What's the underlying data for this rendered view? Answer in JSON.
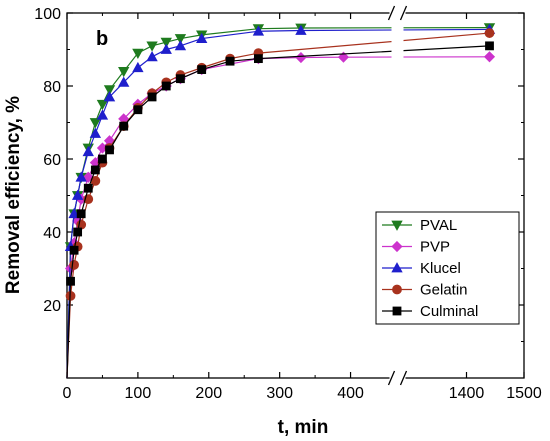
{
  "chart_data": {
    "type": "line",
    "panel_label": "b",
    "xlabel": "t, min",
    "ylabel": "Removal efficiency, %",
    "xlim": [
      0,
      1500
    ],
    "ylim": [
      0,
      100
    ],
    "x_axis_break": [
      450,
      1300
    ],
    "x_ticks": [
      "0",
      "100",
      "200",
      "300",
      "400",
      "1400",
      "1500"
    ],
    "x_tick_values": [
      0,
      100,
      200,
      300,
      400,
      1400,
      1500
    ],
    "y_ticks": [
      "20",
      "40",
      "60",
      "80",
      "100"
    ],
    "y_tick_values": [
      20,
      40,
      60,
      80,
      100
    ],
    "legend_position": "bottom-right",
    "series": [
      {
        "name": "PVAL",
        "color": "#1e7b1e",
        "marker": "triangle-down",
        "x": [
          0,
          5,
          10,
          15,
          20,
          30,
          40,
          50,
          60,
          80,
          100,
          120,
          140,
          160,
          190,
          270,
          330,
          1440
        ],
        "y": [
          0,
          36,
          45,
          50,
          55,
          63,
          70,
          75,
          79,
          84,
          89,
          91,
          92,
          93,
          94,
          95.7,
          95.9,
          96
        ]
      },
      {
        "name": "PVP",
        "color": "#cc33cc",
        "marker": "diamond",
        "x": [
          0,
          5,
          10,
          15,
          20,
          30,
          40,
          50,
          60,
          80,
          100,
          120,
          140,
          160,
          190,
          270,
          330,
          390,
          1440
        ],
        "y": [
          0,
          30,
          37,
          43,
          49,
          55,
          59,
          63,
          65,
          71,
          75,
          78,
          80,
          82,
          84.5,
          87.5,
          87.8,
          87.9,
          88
        ]
      },
      {
        "name": "Klucel",
        "color": "#1f1fcc",
        "marker": "triangle-up",
        "x": [
          0,
          5,
          10,
          15,
          20,
          30,
          40,
          50,
          60,
          80,
          100,
          120,
          140,
          160,
          190,
          270,
          330,
          1440
        ],
        "y": [
          0,
          36,
          45,
          50,
          55,
          62,
          67,
          72,
          77,
          81,
          85,
          88,
          90,
          91,
          93,
          95,
          95.2,
          95.5
        ]
      },
      {
        "name": "Gelatin",
        "color": "#a8321e",
        "marker": "circle",
        "x": [
          0,
          5,
          10,
          15,
          20,
          30,
          40,
          50,
          60,
          80,
          100,
          120,
          140,
          160,
          190,
          230,
          270,
          1440
        ],
        "y": [
          0,
          22.5,
          31,
          36,
          42,
          49,
          54,
          59,
          63,
          69,
          74,
          78,
          81,
          83,
          85,
          87.5,
          89,
          94.5
        ]
      },
      {
        "name": "Culminal",
        "color": "#000000",
        "marker": "square",
        "x": [
          0,
          5,
          10,
          15,
          20,
          30,
          40,
          50,
          60,
          80,
          100,
          120,
          140,
          160,
          190,
          230,
          270,
          1440
        ],
        "y": [
          0,
          26.5,
          35,
          40,
          45,
          52,
          57,
          60,
          62.5,
          69,
          73.5,
          77,
          80,
          82,
          84.5,
          86.8,
          87.5,
          91
        ]
      }
    ]
  }
}
